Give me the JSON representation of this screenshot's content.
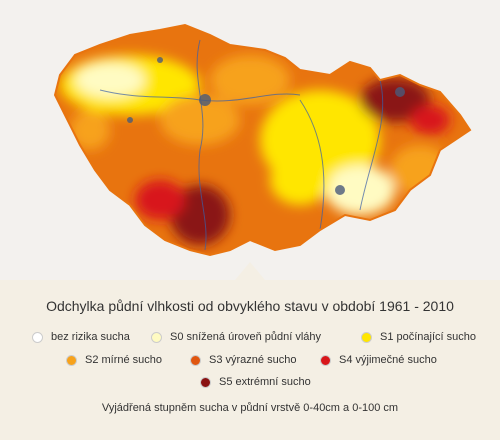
{
  "title": "Odchylka půdní vlhkosti od obvyklého stavu v období 1961 - 2010",
  "legend": {
    "items": [
      {
        "label": "bez rizika sucha",
        "color": "#ffffff"
      },
      {
        "label": "S0 snížená úroveň půdní vláhy",
        "color": "#fffbc2"
      },
      {
        "label": "S1 počínající sucho",
        "color": "#ffe600"
      },
      {
        "label": "S2 mírné sucho",
        "color": "#f7a21b"
      },
      {
        "label": "S3 výrazné sucho",
        "color": "#e0560f"
      },
      {
        "label": "S4 výjimečné sucho",
        "color": "#d8161a"
      },
      {
        "label": "S5 extrémní sucho",
        "color": "#8a1212"
      }
    ]
  },
  "footnote": "Vyjádřená stupněm sucha v půdní vrstvě 0-40cm a 0-100 cm"
}
